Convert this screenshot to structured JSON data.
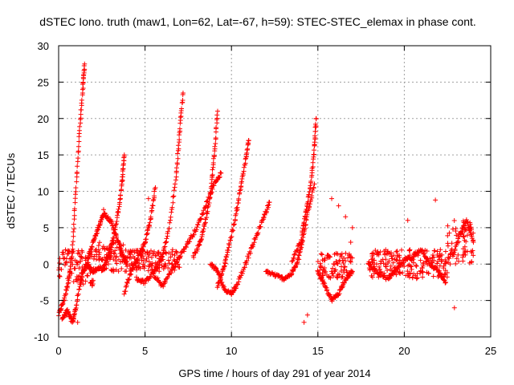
{
  "chart_data": {
    "type": "scatter",
    "title": "dSTEC Iono. truth (maw1, Lon=62, Lat=-67, h=59): STEC-STEC_elemax in phase cont.",
    "xlabel": "GPS time / hours of day 291 of year 2014",
    "ylabel": "dSTEC  / TECUs",
    "xlim": [
      0,
      25
    ],
    "ylim": [
      -10,
      30
    ],
    "x_ticks": [
      "0",
      "5",
      "10",
      "15",
      "20",
      "25"
    ],
    "y_ticks": [
      "-10",
      "-5",
      "0",
      "5",
      "10",
      "15",
      "20",
      "25",
      "30"
    ],
    "grid": true,
    "marker": "+",
    "color": "#ff0000",
    "arc_keypoints": [
      [
        [
          0.0,
          -7.0
        ],
        [
          0.3,
          -5.0
        ],
        [
          0.6,
          -2.0
        ],
        [
          0.8,
          2.0
        ],
        [
          1.0,
          10.0
        ],
        [
          1.2,
          18.0
        ],
        [
          1.4,
          24.0
        ],
        [
          1.5,
          27.5
        ]
      ],
      [
        [
          0.2,
          -7.5
        ],
        [
          0.5,
          -6.5
        ],
        [
          0.8,
          -8.0
        ],
        [
          1.0,
          -6.0
        ],
        [
          1.3,
          -2.0
        ],
        [
          1.6,
          0.0
        ],
        [
          2.0,
          -1.0
        ],
        [
          2.4,
          -0.5
        ]
      ],
      [
        [
          1.6,
          0.0
        ],
        [
          2.0,
          3.0
        ],
        [
          2.3,
          5.0
        ],
        [
          2.6,
          7.0
        ],
        [
          3.0,
          6.0
        ],
        [
          3.3,
          4.0
        ],
        [
          3.6,
          2.0
        ],
        [
          3.9,
          0.0
        ]
      ],
      [
        [
          2.5,
          -1.0
        ],
        [
          2.9,
          1.0
        ],
        [
          3.2,
          4.0
        ],
        [
          3.5,
          8.0
        ],
        [
          3.7,
          12.0
        ],
        [
          3.8,
          15.0
        ]
      ],
      [
        [
          3.8,
          -4.0
        ],
        [
          4.2,
          -1.0
        ],
        [
          4.6,
          1.0
        ],
        [
          5.0,
          3.0
        ],
        [
          5.3,
          6.0
        ],
        [
          5.6,
          10.5
        ]
      ],
      [
        [
          4.5,
          -2.0
        ],
        [
          5.0,
          -2.5
        ],
        [
          5.5,
          -1.0
        ],
        [
          6.0,
          1.0
        ],
        [
          6.4,
          5.0
        ],
        [
          6.8,
          12.0
        ],
        [
          7.0,
          18.0
        ],
        [
          7.2,
          23.5
        ]
      ],
      [
        [
          5.5,
          -1.5
        ],
        [
          6.0,
          -3.0
        ],
        [
          6.5,
          -1.0
        ],
        [
          7.0,
          1.0
        ],
        [
          7.5,
          3.0
        ],
        [
          8.0,
          5.0
        ],
        [
          8.5,
          8.0
        ],
        [
          9.0,
          11.0
        ],
        [
          9.4,
          12.5
        ]
      ],
      [
        [
          7.8,
          1.0
        ],
        [
          8.2,
          3.0
        ],
        [
          8.5,
          6.0
        ],
        [
          8.8,
          10.0
        ],
        [
          9.0,
          15.0
        ],
        [
          9.2,
          21.0
        ]
      ],
      [
        [
          8.8,
          0.0
        ],
        [
          9.2,
          -1.0
        ],
        [
          9.6,
          -3.5
        ],
        [
          10.0,
          -4.0
        ],
        [
          10.3,
          -3.0
        ],
        [
          10.8,
          0.0
        ],
        [
          11.3,
          3.0
        ],
        [
          11.8,
          6.0
        ],
        [
          12.2,
          8.5
        ]
      ],
      [
        [
          9.2,
          -3.0
        ],
        [
          9.5,
          -1.0
        ],
        [
          9.8,
          2.0
        ],
        [
          10.2,
          6.0
        ],
        [
          10.5,
          10.0
        ],
        [
          10.8,
          14.0
        ],
        [
          11.0,
          17.0
        ]
      ],
      [
        [
          12.0,
          -1.0
        ],
        [
          12.5,
          -1.5
        ],
        [
          13.0,
          -2.0
        ],
        [
          13.4,
          -1.5
        ],
        [
          13.8,
          0.0
        ],
        [
          14.1,
          3.0
        ],
        [
          14.4,
          7.0
        ],
        [
          14.8,
          11.0
        ]
      ],
      [
        [
          13.5,
          0.5
        ],
        [
          14.0,
          3.0
        ],
        [
          14.3,
          7.0
        ],
        [
          14.6,
          11.0
        ],
        [
          14.8,
          16.0
        ],
        [
          14.9,
          20.0
        ]
      ],
      [
        [
          15.0,
          -1.0
        ],
        [
          15.4,
          -3.0
        ],
        [
          15.8,
          -5.0
        ],
        [
          16.2,
          -4.0
        ],
        [
          16.6,
          -2.0
        ],
        [
          17.0,
          -1.0
        ]
      ],
      [
        [
          17.9,
          0.0
        ],
        [
          18.4,
          -1.0
        ],
        [
          19.0,
          -2.0
        ],
        [
          19.5,
          -1.0
        ],
        [
          20.0,
          0.5
        ],
        [
          20.5,
          1.0
        ],
        [
          21.0,
          2.0
        ],
        [
          21.5,
          0.0
        ],
        [
          22.0,
          -1.0
        ],
        [
          22.4,
          -2.5
        ]
      ],
      [
        [
          22.8,
          1.0
        ],
        [
          23.2,
          4.0
        ],
        [
          23.6,
          6.0
        ],
        [
          24.0,
          3.0
        ]
      ]
    ],
    "noise_bands": [
      {
        "x": [
          0.0,
          2.0
        ],
        "y": [
          -3.0,
          2.0
        ]
      },
      {
        "x": [
          2.0,
          4.0
        ],
        "y": [
          -1.0,
          3.0
        ]
      },
      {
        "x": [
          4.0,
          7.0
        ],
        "y": [
          -1.0,
          2.0
        ]
      },
      {
        "x": [
          15.0,
          17.0
        ],
        "y": [
          -2.0,
          1.5
        ]
      },
      {
        "x": [
          17.9,
          22.5
        ],
        "y": [
          -2.0,
          2.0
        ]
      },
      {
        "x": [
          22.5,
          24.0
        ],
        "y": [
          0.0,
          6.0
        ]
      }
    ],
    "outliers": [
      [
        15.8,
        9.0
      ],
      [
        16.2,
        8.0
      ],
      [
        16.6,
        6.5
      ],
      [
        16.9,
        3.0
      ],
      [
        17.0,
        5.0
      ],
      [
        20.2,
        6.0
      ],
      [
        21.8,
        8.8
      ],
      [
        22.9,
        -6.0
      ],
      [
        14.2,
        -8.0
      ],
      [
        14.4,
        -7.0
      ],
      [
        1.1,
        -8.0
      ],
      [
        2.6,
        7.5
      ],
      [
        5.2,
        9.0
      ]
    ]
  }
}
